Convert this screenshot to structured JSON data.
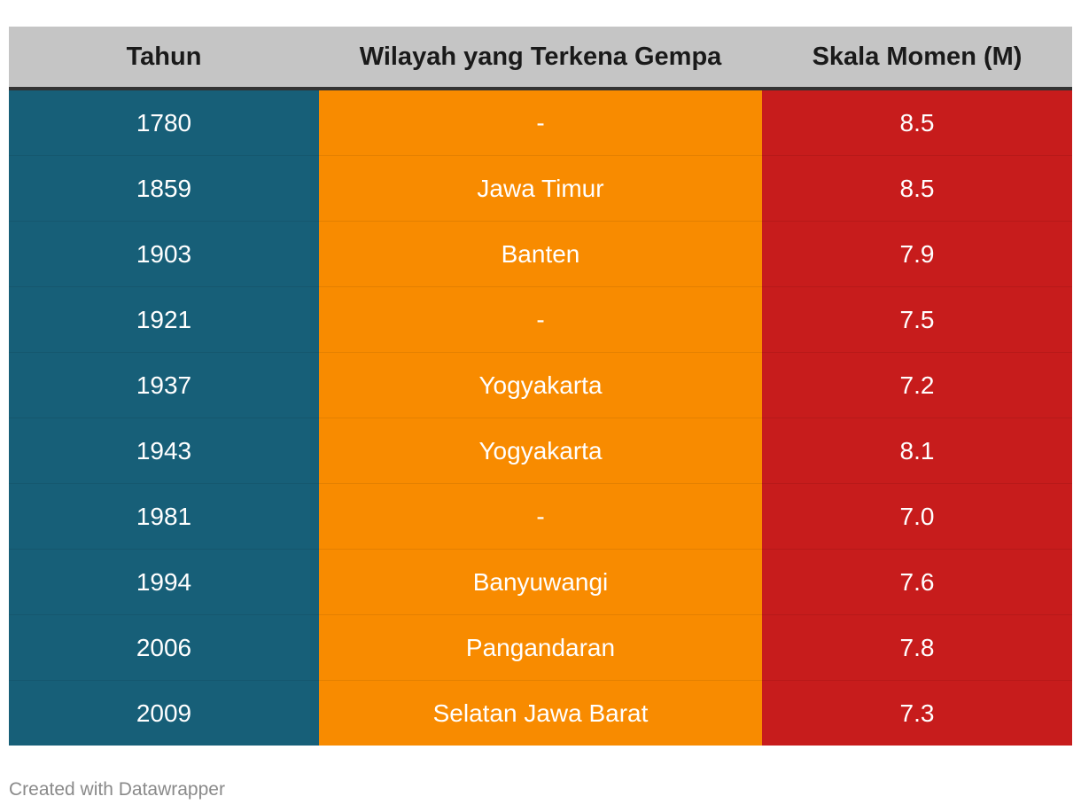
{
  "chart_data": {
    "type": "table",
    "columns": [
      "Tahun",
      "Wilayah yang Terkena Gempa",
      "Skala Momen (M)"
    ],
    "rows": [
      [
        "1780",
        "-",
        "8.5"
      ],
      [
        "1859",
        "Jawa Timur",
        "8.5"
      ],
      [
        "1903",
        "Banten",
        "7.9"
      ],
      [
        "1921",
        "-",
        "7.5"
      ],
      [
        "1937",
        "Yogyakarta",
        "7.2"
      ],
      [
        "1943",
        "Yogyakarta",
        "8.1"
      ],
      [
        "1981",
        "-",
        "7.0"
      ],
      [
        "1994",
        "Banyuwangi",
        "7.6"
      ],
      [
        "2006",
        "Pangandaran",
        "7.8"
      ],
      [
        "2009",
        "Selatan Jawa Barat",
        "7.3"
      ]
    ],
    "column_colors": [
      "#175f78",
      "#f88b00",
      "#c71c1c"
    ],
    "header_color": "#c5c5c5"
  },
  "footer": {
    "credit": "Created with Datawrapper"
  }
}
